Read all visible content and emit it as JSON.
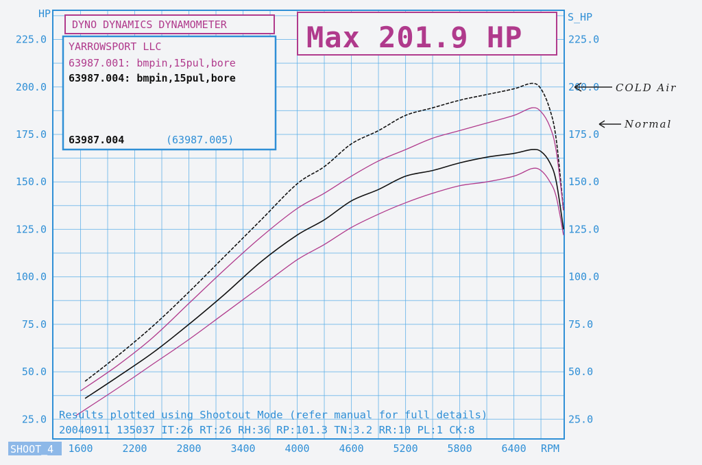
{
  "colors": {
    "axis_blue": "#2f8fd6",
    "grid_blue": "#5aaee8",
    "magenta": "#b03a8c",
    "black": "#111111",
    "paper": "#f3f4f6"
  },
  "header": {
    "dyno_label": "DYNO DYNAMICS DYNAMOMETER",
    "max_label": "Max 201.9 HP"
  },
  "info_box": {
    "company": "YARROWSPORT LLC",
    "run1": "63987.001: bmpin,15pul,bore",
    "run2": "63987.004: bmpin,15pul,bore",
    "id_left": "63987.004",
    "id_right": "(63987.005)"
  },
  "annotations": {
    "cold_air": "COLD Air",
    "normal": "Normal"
  },
  "footer": {
    "line1": "Results plotted using Shootout Mode (refer manual for full details)",
    "line2": "20040911 135037 IT:26 RT:26 RH:36 RP:101.3 TN:3.2 RR:10 PL:1 CK:8"
  },
  "shoot_label": "SHOOT_4",
  "chart_data": {
    "type": "line",
    "xlabel": "RPM",
    "ylabel_left": "HP",
    "ylabel_right": "S_HP",
    "xlim": [
      1300,
      6950
    ],
    "ylim": [
      15,
      240
    ],
    "x_ticks": [
      1600,
      2200,
      2800,
      3400,
      4000,
      4600,
      5200,
      5800,
      6400
    ],
    "x_tick_labels": [
      "1600",
      "2200",
      "2800",
      "3400",
      "4000",
      "4600",
      "5200",
      "5800",
      "6400"
    ],
    "y_ticks": [
      25,
      50,
      75,
      100,
      125,
      150,
      175,
      200,
      225
    ],
    "y_tick_labels": [
      "25.0",
      "50.0",
      "75.0",
      "100.0",
      "125.0",
      "150.0",
      "175.0",
      "200.0",
      "225.0"
    ],
    "grid": true,
    "series": [
      {
        "color": "#111111",
        "dashed": true,
        "x": [
          1650,
          2000,
          2400,
          2800,
          3200,
          3600,
          4000,
          4300,
          4600,
          4900,
          5200,
          5500,
          5800,
          6100,
          6400,
          6600,
          6700,
          6800,
          6870,
          6950
        ],
        "y": [
          45,
          58,
          74,
          92,
          111,
          130,
          149,
          158,
          170,
          177,
          185,
          189,
          193,
          196,
          199,
          201.9,
          199,
          188,
          172,
          135
        ]
      },
      {
        "color": "#b03a8c",
        "dashed": false,
        "x": [
          1600,
          2000,
          2400,
          2800,
          3200,
          3600,
          4000,
          4300,
          4600,
          4900,
          5200,
          5500,
          5800,
          6100,
          6400,
          6600,
          6700,
          6800,
          6870,
          6950
        ],
        "y": [
          40,
          53,
          68,
          86,
          104,
          121,
          136,
          144,
          153,
          161,
          167,
          173,
          177,
          181,
          185,
          189,
          187,
          179,
          166,
          135
        ]
      },
      {
        "color": "#111111",
        "dashed": false,
        "x": [
          1650,
          2000,
          2400,
          2800,
          3200,
          3600,
          4000,
          4300,
          4600,
          4900,
          5200,
          5500,
          5800,
          6100,
          6400,
          6600,
          6700,
          6800,
          6870,
          6950
        ],
        "y": [
          36,
          47,
          60,
          75,
          91,
          108,
          122,
          130,
          140,
          146,
          153,
          156,
          160,
          163,
          165,
          167,
          166,
          160,
          150,
          125
        ]
      },
      {
        "color": "#b03a8c",
        "dashed": false,
        "x": [
          1550,
          2000,
          2400,
          2800,
          3200,
          3600,
          4000,
          4300,
          4600,
          4900,
          5200,
          5500,
          5800,
          6100,
          6400,
          6600,
          6700,
          6800,
          6870,
          6950
        ],
        "y": [
          27,
          41,
          54,
          67,
          81,
          95,
          109,
          117,
          126,
          133,
          139,
          144,
          148,
          150,
          153,
          157,
          156,
          150,
          142,
          122
        ]
      }
    ]
  }
}
